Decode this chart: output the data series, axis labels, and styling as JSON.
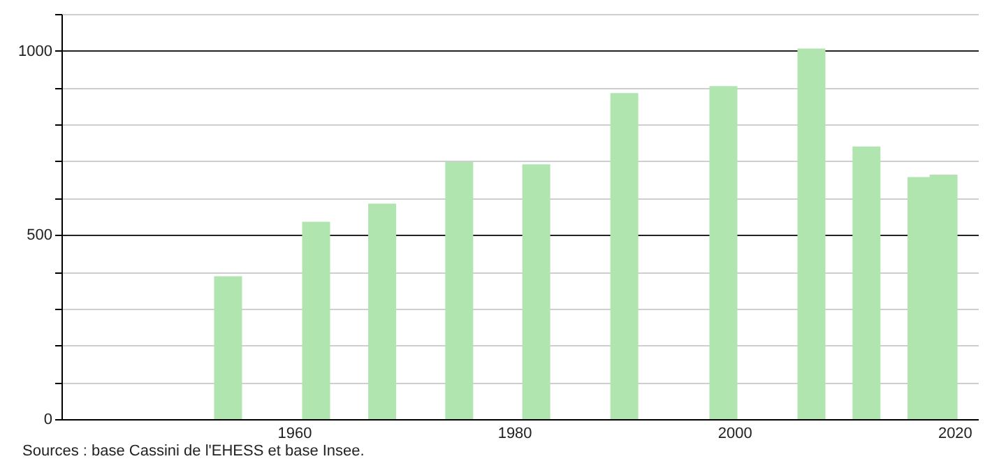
{
  "chart_data": {
    "type": "bar",
    "x": [
      1954,
      1962,
      1968,
      1975,
      1982,
      1990,
      1999,
      2007,
      2012,
      2017,
      2019
    ],
    "values": [
      388,
      536,
      585,
      698,
      692,
      885,
      904,
      1006,
      740,
      657,
      664
    ],
    "color": "#b0e5b0",
    "xlim": [
      1939.5,
      2021.5
    ],
    "xticks": [
      1960,
      1980,
      2000,
      2020
    ],
    "ylim": [
      0,
      1100
    ],
    "yticks": [
      0,
      {
        "value": 100,
        "label": null
      },
      {
        "value": 200,
        "label": null
      },
      {
        "value": 300,
        "label": null
      },
      {
        "value": 400,
        "label": null
      },
      500,
      {
        "value": 600,
        "label": null
      },
      {
        "value": 700,
        "label": null
      },
      {
        "value": 800,
        "label": null
      },
      {
        "value": 900,
        "label": null
      },
      1000,
      {
        "value": 1100,
        "label": null
      }
    ],
    "grid": "y",
    "annotations": [
      "Sources : base Cassini de l'EHESS et base Insee."
    ]
  }
}
